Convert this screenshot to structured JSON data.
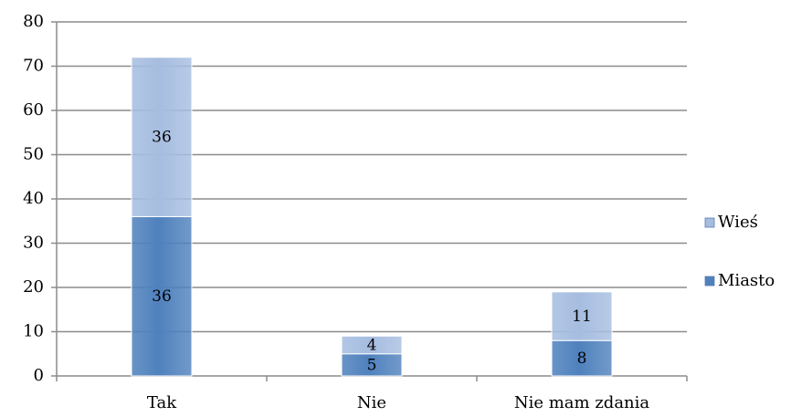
{
  "chart_data": {
    "type": "bar",
    "stacked": true,
    "categories": [
      "Tak",
      "Nie",
      "Nie mam zdania"
    ],
    "series": [
      {
        "name": "Miasto",
        "color": "#4f81bd",
        "values": [
          36,
          5,
          8
        ]
      },
      {
        "name": "Wieś",
        "color": "#a6bde0",
        "values": [
          36,
          4,
          11
        ]
      }
    ],
    "ylim": [
      0,
      80
    ],
    "yticks": [
      0,
      10,
      20,
      30,
      40,
      50,
      60,
      70,
      80
    ],
    "grid": true,
    "legend": "right"
  }
}
